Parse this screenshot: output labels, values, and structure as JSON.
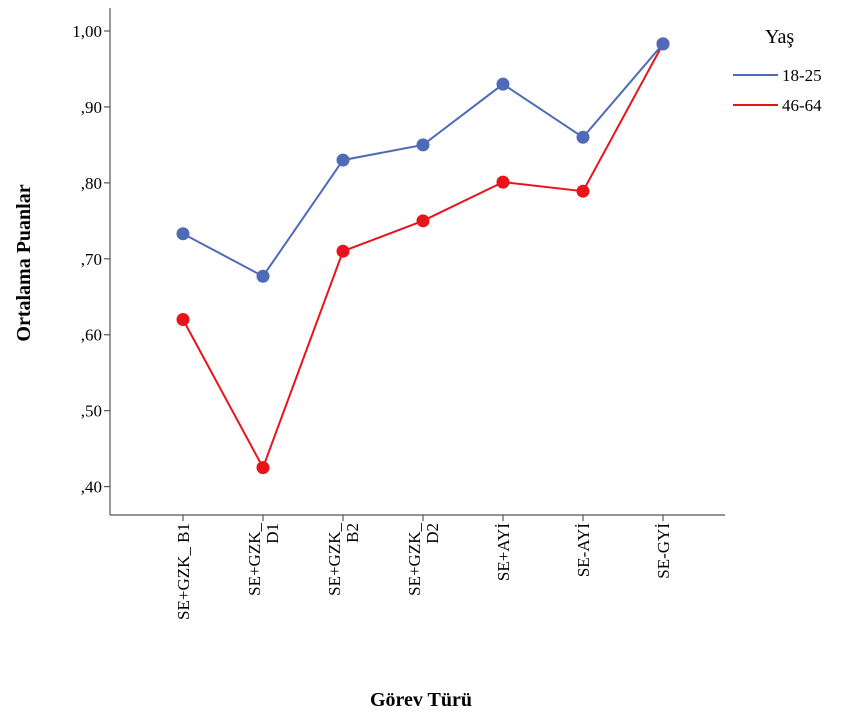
{
  "chart_data": {
    "type": "line",
    "xlabel": "Görev Türü",
    "ylabel": "Ortalama Puanlar",
    "ylim": [
      0.4,
      1.0
    ],
    "ytick_labels": [
      ",40",
      ",50",
      ",60",
      ",70",
      ",80",
      ",90",
      "1,00"
    ],
    "ytick_values": [
      0.4,
      0.5,
      0.6,
      0.7,
      0.8,
      0.9,
      1.0
    ],
    "categories": [
      [
        "SE+GZK_ B1"
      ],
      [
        "SE+GZK_",
        "D1"
      ],
      [
        "SE+GZK_",
        "B2"
      ],
      [
        "SE+GZK_",
        "D2"
      ],
      [
        "SE+AYİ"
      ],
      [
        "SE-AYİ"
      ],
      [
        "SE-GYİ"
      ]
    ],
    "legend_title": "Yaş",
    "legend_position": "top-right",
    "grid": false,
    "series": [
      {
        "name": "18-25",
        "color": "#4f6bb8",
        "values": [
          0.733,
          0.677,
          0.83,
          0.85,
          0.93,
          0.86,
          0.983
        ]
      },
      {
        "name": "46-64",
        "color": "#e8141c",
        "values": [
          0.62,
          0.425,
          0.71,
          0.75,
          0.801,
          0.789,
          0.983
        ]
      }
    ]
  }
}
